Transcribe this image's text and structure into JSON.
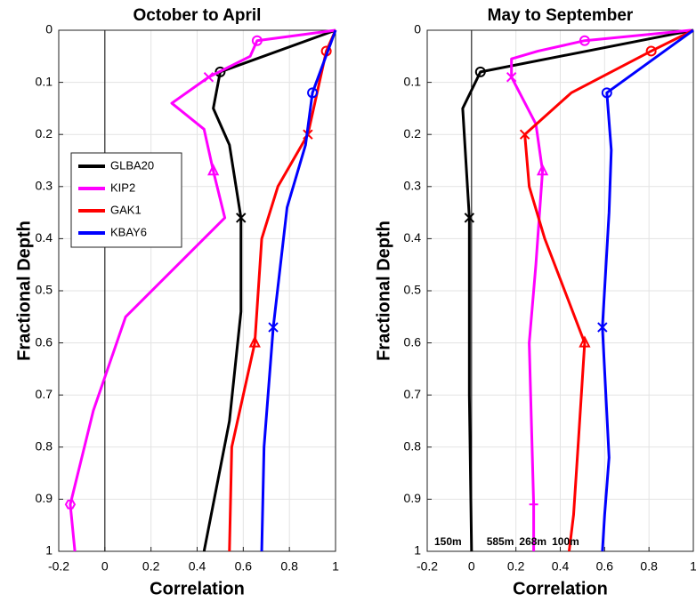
{
  "chart_data": [
    {
      "type": "line",
      "title": "October to April",
      "xlabel": "Correlation",
      "ylabel": "Fractional Depth",
      "xlim": [
        -0.2,
        1
      ],
      "xticks": [
        -0.2,
        0,
        0.2,
        0.4,
        0.6,
        0.8,
        1
      ],
      "ylim": [
        0,
        1
      ],
      "yticks": [
        0,
        0.1,
        0.2,
        0.3,
        0.4,
        0.5,
        0.6,
        0.7,
        0.8,
        0.9,
        1
      ],
      "y_reversed": true,
      "grid": true,
      "zero_line": true,
      "legend": "center left",
      "series": [
        {
          "name": "GLBA20",
          "color": "#000000",
          "x": [
            1,
            0.5,
            0.47,
            0.54,
            0.59,
            0.59,
            0.54,
            0.43
          ],
          "y": [
            0,
            0.08,
            0.15,
            0.22,
            0.36,
            0.54,
            0.75,
            1
          ],
          "markers": [
            {
              "x": 0.5,
              "y": 0.08,
              "symbol": "circle"
            },
            {
              "x": 0.59,
              "y": 0.36,
              "symbol": "x"
            }
          ]
        },
        {
          "name": "KIP2",
          "color": "#ff00ff",
          "x": [
            1,
            0.66,
            0.63,
            0.45,
            0.29,
            0.43,
            0.47,
            0.52,
            0.09,
            -0.05,
            -0.15,
            -0.13
          ],
          "y": [
            0,
            0.02,
            0.05,
            0.09,
            0.14,
            0.19,
            0.27,
            0.36,
            0.55,
            0.73,
            0.91,
            1
          ],
          "markers": [
            {
              "x": 0.66,
              "y": 0.02,
              "symbol": "circle"
            },
            {
              "x": 0.45,
              "y": 0.09,
              "symbol": "x"
            },
            {
              "x": 0.47,
              "y": 0.27,
              "symbol": "triangle"
            },
            {
              "x": -0.15,
              "y": 0.91,
              "symbol": "hexagon"
            }
          ]
        },
        {
          "name": "GAK1",
          "color": "#ff0000",
          "x": [
            1,
            0.96,
            0.88,
            0.75,
            0.68,
            0.65,
            0.55,
            0.54
          ],
          "y": [
            0,
            0.04,
            0.2,
            0.3,
            0.4,
            0.6,
            0.8,
            1
          ],
          "markers": [
            {
              "x": 0.96,
              "y": 0.04,
              "symbol": "circle"
            },
            {
              "x": 0.88,
              "y": 0.2,
              "symbol": "x"
            },
            {
              "x": 0.65,
              "y": 0.6,
              "symbol": "triangle"
            }
          ]
        },
        {
          "name": "KBAY6",
          "color": "#0000ff",
          "x": [
            1,
            0.9,
            0.87,
            0.79,
            0.73,
            0.69,
            0.68
          ],
          "y": [
            0,
            0.12,
            0.22,
            0.34,
            0.57,
            0.8,
            1
          ],
          "markers": [
            {
              "x": 0.9,
              "y": 0.12,
              "symbol": "circle"
            },
            {
              "x": 0.73,
              "y": 0.57,
              "symbol": "x"
            }
          ]
        }
      ]
    },
    {
      "type": "line",
      "title": "May to September",
      "xlabel": "Correlation",
      "ylabel": "Fractional Depth",
      "xlim": [
        -0.2,
        1
      ],
      "xticks": [
        -0.2,
        0,
        0.2,
        0.4,
        0.6,
        0.8,
        1
      ],
      "ylim": [
        0,
        1
      ],
      "yticks": [
        0,
        0.1,
        0.2,
        0.3,
        0.4,
        0.5,
        0.6,
        0.7,
        0.8,
        0.9,
        1
      ],
      "y_reversed": true,
      "grid": true,
      "zero_line": true,
      "series": [
        {
          "name": "GLBA20",
          "color": "#000000",
          "depth_label": "150m",
          "x": [
            1,
            0.04,
            -0.04,
            -0.01,
            -0.01,
            0
          ],
          "y": [
            0,
            0.08,
            0.15,
            0.36,
            0.7,
            1
          ],
          "markers": [
            {
              "x": 0.04,
              "y": 0.08,
              "symbol": "circle"
            },
            {
              "x": -0.01,
              "y": 0.36,
              "symbol": "x"
            }
          ]
        },
        {
          "name": "KIP2",
          "color": "#ff00ff",
          "depth_label": "585m",
          "x": [
            0.99,
            0.51,
            0.3,
            0.18,
            0.18,
            0.29,
            0.32,
            0.29,
            0.26,
            0.28,
            0.28
          ],
          "y": [
            0,
            0.02,
            0.04,
            0.055,
            0.09,
            0.18,
            0.27,
            0.45,
            0.6,
            0.91,
            1
          ],
          "markers": [
            {
              "x": 0.51,
              "y": 0.02,
              "symbol": "circle"
            },
            {
              "x": 0.18,
              "y": 0.09,
              "symbol": "x"
            },
            {
              "x": 0.32,
              "y": 0.27,
              "symbol": "triangle"
            },
            {
              "x": 0.28,
              "y": 0.91,
              "symbol": "plus"
            }
          ]
        },
        {
          "name": "GAK1",
          "color": "#ff0000",
          "depth_label": "268m",
          "x": [
            1,
            0.81,
            0.45,
            0.24,
            0.26,
            0.33,
            0.51,
            0.48,
            0.46,
            0.44
          ],
          "y": [
            0,
            0.04,
            0.12,
            0.2,
            0.3,
            0.4,
            0.6,
            0.8,
            0.93,
            1
          ],
          "markers": [
            {
              "x": 0.81,
              "y": 0.04,
              "symbol": "circle"
            },
            {
              "x": 0.24,
              "y": 0.2,
              "symbol": "x"
            },
            {
              "x": 0.51,
              "y": 0.6,
              "symbol": "triangle"
            }
          ]
        },
        {
          "name": "KBAY6",
          "color": "#0000ff",
          "depth_label": "100m",
          "x": [
            1,
            0.61,
            0.63,
            0.62,
            0.59,
            0.62,
            0.6,
            0.59
          ],
          "y": [
            0,
            0.12,
            0.23,
            0.35,
            0.57,
            0.82,
            0.93,
            1
          ],
          "markers": [
            {
              "x": 0.61,
              "y": 0.12,
              "symbol": "circle"
            },
            {
              "x": 0.59,
              "y": 0.57,
              "symbol": "x"
            }
          ]
        }
      ]
    }
  ]
}
